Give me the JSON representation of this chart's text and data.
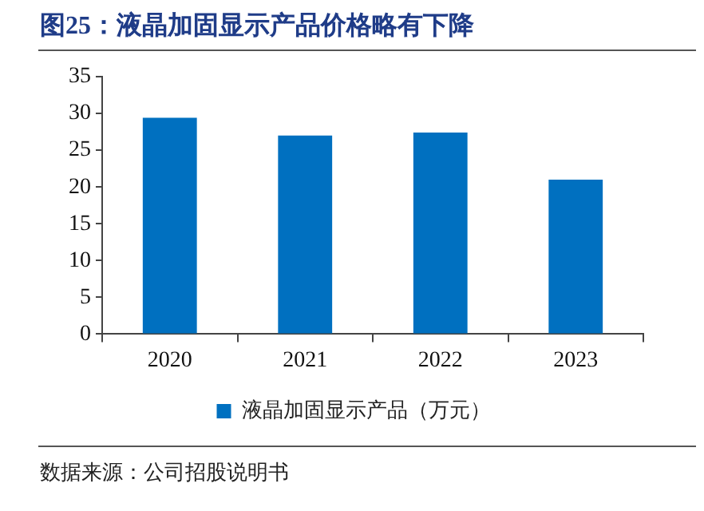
{
  "chart_data": {
    "type": "bar",
    "title": "图25：液晶加固显示产品价格略有下降",
    "categories": [
      "2020",
      "2021",
      "2022",
      "2023"
    ],
    "series": [
      {
        "name": "液晶加固显示产品（万元）",
        "color": "#0070c0",
        "values": [
          29.4,
          27.0,
          27.4,
          21.0
        ]
      }
    ],
    "ylim": [
      0,
      35
    ],
    "yticks": [
      0,
      5,
      10,
      15,
      20,
      25,
      30,
      35
    ],
    "grid": false,
    "legend": "bottom",
    "annotations": [
      "数据来源：公司招股说明书"
    ]
  }
}
